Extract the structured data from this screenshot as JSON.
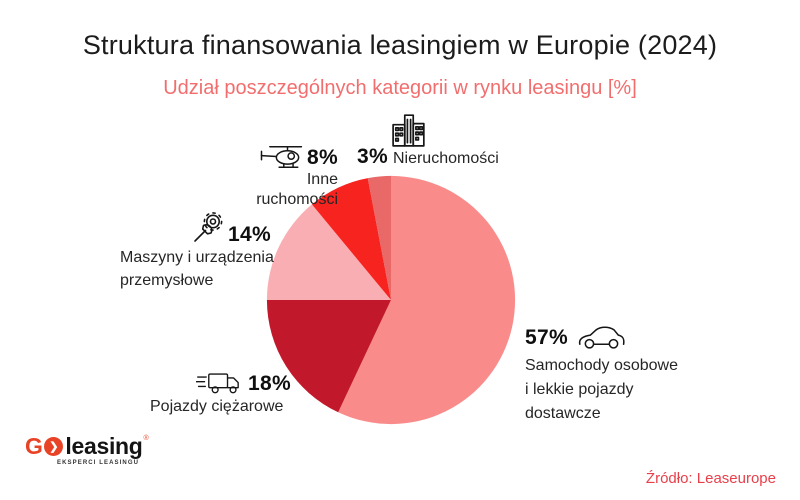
{
  "chart_data": {
    "type": "pie",
    "title": "Struktura finansowania leasingiem w Europie (2024)",
    "subtitle": "Udział poszczególnych kategorii w rynku leasingu [%]",
    "unit": "%",
    "start_angle_deg": 0,
    "direction": "clockwise",
    "legend_position": "around-labels",
    "slices": [
      {
        "label": "Samochody osobowe i lekkie pojazdy dostawcze",
        "label_lines": [
          "Samochody osobowe",
          "i lekkie pojazdy",
          "dostawcze"
        ],
        "value": 57,
        "pct_label": "57%",
        "color": "#F98B8B",
        "icon": "car-icon"
      },
      {
        "label": "Pojazdy ciężarowe",
        "value": 18,
        "pct_label": "18%",
        "color": "#C2182B",
        "icon": "truck-icon"
      },
      {
        "label": "Maszyny i urządzenia przemysłowe",
        "label_lines": [
          "Maszyny i urządzenia",
          "przemysłowe"
        ],
        "value": 14,
        "pct_label": "14%",
        "color": "#F8AEB2",
        "icon": "gear-wrench-icon"
      },
      {
        "label": "Inne ruchomości",
        "value": 8,
        "pct_label": "8%",
        "color": "#F6231F",
        "icon": "helicopter-icon"
      },
      {
        "label": "Nieruchomości",
        "value": 3,
        "pct_label": "3%",
        "color": "#E96868",
        "icon": "buildings-icon"
      }
    ]
  },
  "footer": {
    "logo": {
      "g": "G",
      "o_arrow": "❯",
      "word": "leasing",
      "reg": "®",
      "tagline": "EKSPERCI LEASINGU",
      "accent_color": "#E84326"
    },
    "source": "Źródło: Leaseurope"
  },
  "colors": {
    "title": "#1C1C1C",
    "subtitle": "#F26E6E",
    "source": "#E8404B",
    "percent_text": "#0F0F0F",
    "category_text": "#262626",
    "background": "#FFFFFF"
  }
}
